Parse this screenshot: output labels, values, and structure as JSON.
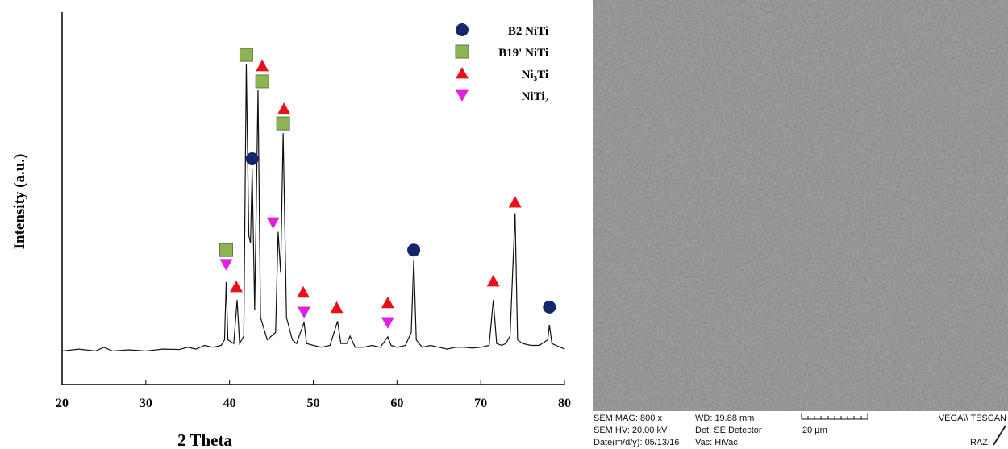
{
  "chart_data": {
    "type": "line",
    "xlabel": "2 Theta",
    "ylabel": "Intensity (a.u.)",
    "xlim": [
      20,
      80
    ],
    "xticks": [
      20,
      30,
      40,
      50,
      60,
      70,
      80
    ],
    "ylim": [
      0,
      100
    ],
    "grid": false,
    "legend": "upper right",
    "series": [
      {
        "color": "#111111",
        "x": [
          20,
          22,
          24,
          25,
          26,
          28,
          30,
          32,
          34,
          35,
          36,
          37,
          38,
          39,
          39.4,
          39.6,
          39.8,
          40.5,
          40.9,
          41.2,
          41.7,
          42,
          42.3,
          42.5,
          42.7,
          43,
          43.4,
          43.7,
          44.5,
          45.5,
          45.8,
          46.1,
          46.4,
          46.8,
          47.5,
          48,
          48.9,
          49.2,
          50,
          51,
          52,
          52.9,
          53.3,
          54,
          54.4,
          55,
          56,
          57,
          58,
          58.9,
          59.3,
          60,
          61,
          61.7,
          62,
          62.3,
          63,
          64,
          65,
          66,
          67,
          68,
          69,
          70,
          71,
          71.5,
          71.9,
          72.5,
          73,
          73.5,
          74.1,
          74.4,
          75,
          76,
          77,
          78,
          78.2,
          78.5,
          79,
          80
        ],
        "values": [
          9,
          9.5,
          9,
          10,
          9,
          9.3,
          9,
          9.5,
          9.4,
          10,
          9.5,
          10.5,
          10,
          10.5,
          12,
          27.5,
          12,
          11,
          22.7,
          11,
          13,
          86,
          40,
          38,
          57.8,
          20,
          79,
          18,
          12,
          14,
          41,
          30,
          67.5,
          18,
          12,
          11,
          16.7,
          11,
          10.5,
          10,
          10.5,
          17,
          11,
          11,
          13,
          10,
          10,
          10.5,
          10,
          12.8,
          10.5,
          10,
          10.5,
          14,
          33.5,
          12,
          10,
          10.5,
          10,
          9.5,
          10,
          10,
          9.8,
          10,
          10.5,
          22.7,
          11,
          10.5,
          11,
          13,
          46,
          12,
          11,
          10.5,
          10.5,
          12,
          16,
          11,
          10.5,
          9.5
        ]
      }
    ],
    "phases": [
      {
        "name": "B2 NiTi",
        "color": "#14276b",
        "shape": "circle",
        "x": [
          42.7,
          62,
          78.2
        ],
        "y": [
          60.6,
          36.1,
          20.8
        ]
      },
      {
        "name": "B19' NiTi",
        "color": "#8cb450",
        "shape": "square",
        "x": [
          39.6,
          42,
          43.9,
          46.4
        ],
        "y": [
          36.1,
          88.5,
          81.4,
          70.1
        ]
      },
      {
        "name": "Ni₃Ti",
        "color": "#e8101a",
        "shape": "triangle-up",
        "x": [
          40.8,
          43.9,
          46.5,
          48.8,
          52.8,
          58.9,
          71.5,
          74.1
        ],
        "y": [
          26.2,
          85.5,
          74,
          24.7,
          20.6,
          21.9,
          27.7,
          48.9
        ]
      },
      {
        "name": "NiTi₂",
        "color": "#e020e0",
        "shape": "triangle-down",
        "x": [
          39.6,
          45.2,
          48.9,
          58.9
        ],
        "y": [
          32.3,
          43.5,
          19.5,
          16.7
        ]
      }
    ]
  },
  "micrograph": {
    "info": [
      "SEM MAG: 800 x",
      "WD: 19.88 mm",
      "VEGA\\\\ TESCAN",
      "SEM HV: 20.00 kV",
      "Det: SE Detector",
      "20 µm",
      "Date(m/d/y): 05/13/16",
      "Vac: HiVac",
      "RAZI"
    ]
  }
}
